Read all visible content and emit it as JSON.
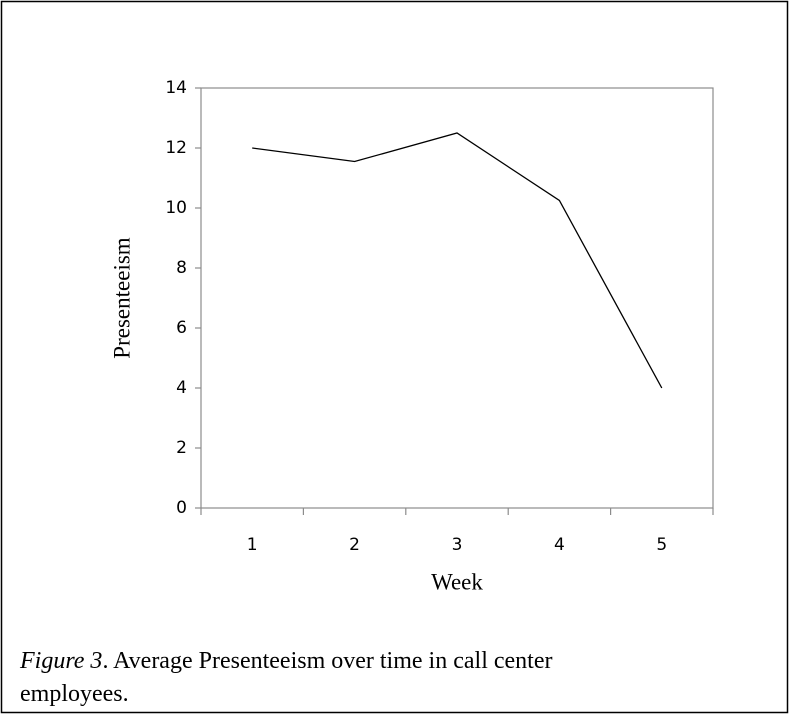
{
  "chart_data": {
    "type": "line",
    "x_label": "Week",
    "y_label": "Presenteeism",
    "categories": [
      "1",
      "2",
      "3",
      "4",
      "5"
    ],
    "values": [
      12,
      11.55,
      12.5,
      10.25,
      4
    ],
    "color": "#000000",
    "ylim": [
      0,
      14
    ],
    "yticks": [
      0,
      2,
      4,
      6,
      8,
      10,
      12,
      14
    ],
    "caption_label": "Figure 3",
    "caption_text": ". Average Presenteeism over time in call center",
    "caption_text_2": "employees."
  }
}
